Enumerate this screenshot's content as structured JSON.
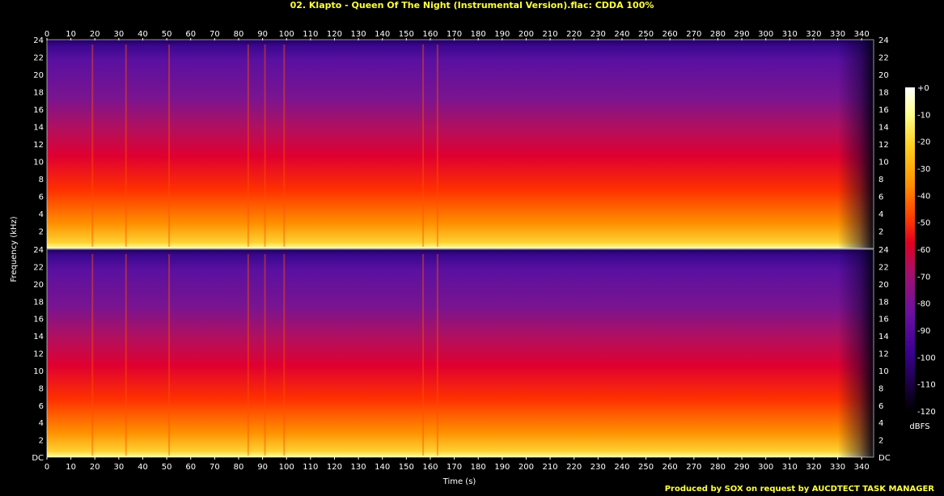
{
  "chart_data": {
    "type": "heatmap",
    "title": "02. Klapto - Queen Of The Night (Instrumental Version).flac: CDDA 100%",
    "xlabel": "Time (s)",
    "ylabel": "Frequency (kHz)",
    "x_ticks": [
      "0",
      "10",
      "20",
      "30",
      "40",
      "50",
      "60",
      "70",
      "80",
      "90",
      "100",
      "110",
      "120",
      "130",
      "140",
      "150",
      "160",
      "170",
      "180",
      "190",
      "200",
      "210",
      "220",
      "230",
      "240",
      "250",
      "260",
      "270",
      "280",
      "290",
      "300",
      "310",
      "320",
      "330",
      "340"
    ],
    "y_ticks": [
      "DC",
      "2",
      "4",
      "6",
      "8",
      "10",
      "12",
      "14",
      "16",
      "18",
      "20",
      "22",
      "24"
    ],
    "xlim": [
      0,
      345
    ],
    "ylim": [
      0,
      24
    ],
    "channels": 2,
    "colorbar": {
      "label": "dBFS",
      "range": [
        -120,
        0
      ],
      "ticks": [
        "+0",
        "-10",
        "-20",
        "-30",
        "-40",
        "-50",
        "-60",
        "-70",
        "-80",
        "-90",
        "-100",
        "-110",
        "-120"
      ]
    },
    "colormap": [
      "#000000",
      "#1a0040",
      "#3a0090",
      "#6a10a0",
      "#a01070",
      "#e00020",
      "#ff4000",
      "#ff9000",
      "#ffd020",
      "#ffff90",
      "#ffffff"
    ],
    "accent_color": "#ffff40"
  },
  "footer": "Produced by SOX on request by AUCDTECT TASK MANAGER"
}
